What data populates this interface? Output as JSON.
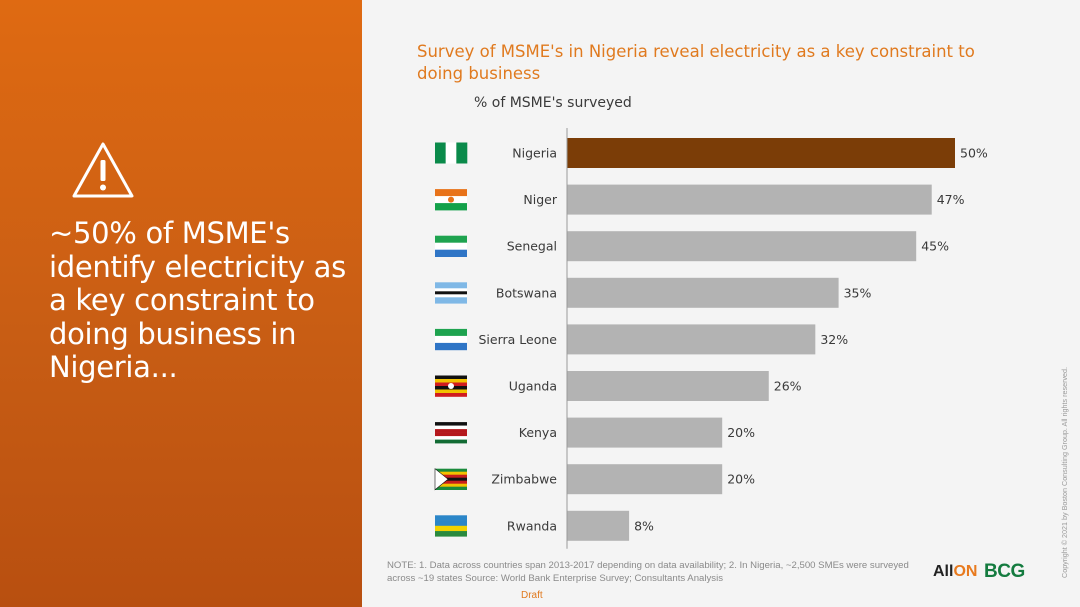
{
  "headline": "~50% of MSME's identify electricity as a key constraint to doing business in Nigeria...",
  "chart_data": {
    "type": "bar",
    "orientation": "horizontal",
    "title": "Survey of MSME's in Nigeria reveal electricity as a key constraint to doing business",
    "subtitle": "% of MSME's surveyed",
    "categories": [
      "Nigeria",
      "Niger",
      "Senegal",
      "Botswana",
      "Sierra Leone",
      "Uganda",
      "Kenya",
      "Zimbabwe",
      "Rwanda"
    ],
    "values": [
      50,
      47,
      45,
      35,
      32,
      26,
      20,
      20,
      8
    ],
    "value_labels": [
      "50%",
      "47%",
      "45%",
      "35%",
      "32%",
      "26%",
      "20%",
      "20%",
      "8%"
    ],
    "xlim": [
      0,
      50
    ],
    "grid": false,
    "colors": {
      "highlight": "#7b3d07",
      "default": "#b3b3b3",
      "axis": "#9a9a9a"
    },
    "highlight_category": "Nigeria"
  },
  "note": "NOTE: 1. Data across countries span 2013-2017 depending on data availability; 2. In Nigeria, ~2,500 SMEs were surveyed across ~19 states Source: World Bank Enterprise Survey; Consultants Analysis",
  "draft_label": "Draft",
  "logos": {
    "allon_prefix": "All",
    "allon_suffix": "ON",
    "bcg": "BCG"
  },
  "copyright": "Copyright © 2021 by Boston Consulting Group. All rights reserved.",
  "icons": {
    "warning": "warning-triangle-icon"
  }
}
